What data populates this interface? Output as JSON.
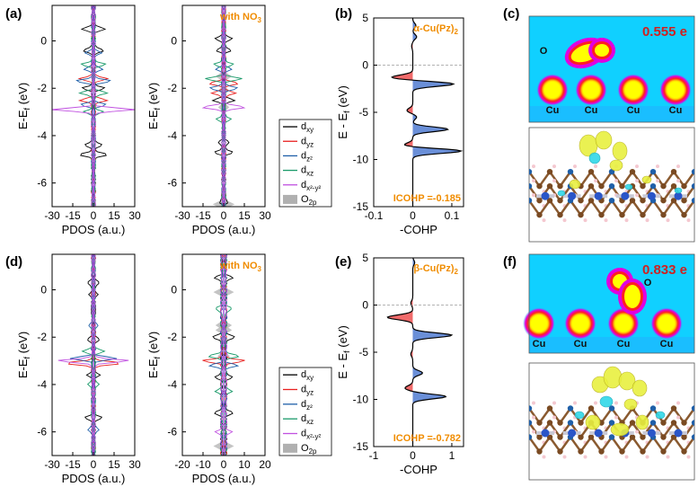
{
  "colors": {
    "dxy": "#000000",
    "dyz": "#e8201f",
    "dz2": "#1f5fa8",
    "dxz": "#1a9a6a",
    "dx2y2": "#c050e0",
    "o2p": "#b0b0b0",
    "zero": "#9b4fd6",
    "pos": "#6a8fd8",
    "neg": "#f06a6a",
    "note": "#f08c00",
    "charge": "#d02020",
    "map_bg": "#10d0ff"
  },
  "panels": {
    "a": "(a)",
    "b": "(b)",
    "c": "(c)",
    "d": "(d)",
    "e": "(e)",
    "f": "(f)"
  },
  "labels": {
    "ef_axis": "E-E",
    "ef_sub": "f",
    "ef_unit": " (eV)",
    "ef_axis_sp": "E - E",
    "pdos": "PDOS (a.u.)",
    "cohp": "-COHP",
    "with_no3": "with NO",
    "alpha": "α-Cu(Pz)",
    "beta": "β-Cu(Pz)",
    "sub2": "2",
    "icohp_a": "ICOHP =-0.185",
    "icohp_b": "ICOHP =-0.782",
    "charge_c": "0.555 e",
    "charge_f": "0.833 e",
    "O": "O",
    "Cu": "Cu"
  },
  "legend": [
    {
      "key": "dxy",
      "main": "d",
      "sub": "xy",
      "kind": "line"
    },
    {
      "key": "dyz",
      "main": "d",
      "sub": "yz",
      "kind": "line"
    },
    {
      "key": "dz2",
      "main": "d",
      "sub": "z²",
      "kind": "line"
    },
    {
      "key": "dxz",
      "main": "d",
      "sub": "xz",
      "kind": "line"
    },
    {
      "key": "dx2y2",
      "main": "d",
      "sub": "x²-y²",
      "kind": "line"
    },
    {
      "key": "o2p",
      "main": "O",
      "sub": "2p",
      "kind": "box"
    }
  ],
  "chart_data": [
    {
      "id": "a-left",
      "type": "line",
      "xlabel": "PDOS (a.u.)",
      "ylabel": "E-Ef (eV)",
      "xlim": [
        -30,
        30
      ],
      "ylim": [
        -7,
        1.5
      ],
      "xticks": [
        -30,
        -15,
        0,
        15,
        30
      ],
      "yticks": [
        0,
        -2,
        -4,
        -6
      ],
      "peaks": [
        [
          0.5,
          "dxy",
          8
        ],
        [
          -0.4,
          "dxy",
          7
        ],
        [
          -0.5,
          "dz2",
          5
        ],
        [
          -1.0,
          "dxz",
          8
        ],
        [
          -1.2,
          "dz2",
          6
        ],
        [
          -1.6,
          "dyz",
          10
        ],
        [
          -1.7,
          "dz2",
          12
        ],
        [
          -2.0,
          "dxy",
          7
        ],
        [
          -2.2,
          "dxz",
          9
        ],
        [
          -2.5,
          "dyz",
          9
        ],
        [
          -2.7,
          "dz2",
          8
        ],
        [
          -2.9,
          "dx2y2",
          30
        ],
        [
          -3.0,
          "dxz",
          6
        ],
        [
          -4.4,
          "dxy",
          5
        ],
        [
          -4.8,
          "dxy",
          10
        ]
      ]
    },
    {
      "id": "a-right",
      "type": "line",
      "xlabel": "PDOS (a.u.)",
      "ylabel": "E-Ef (eV)",
      "xlim": [
        -30,
        30
      ],
      "ylim": [
        -7,
        1.5
      ],
      "xticks": [
        -30,
        -15,
        0,
        15,
        30
      ],
      "yticks": [
        0,
        -2,
        -4,
        -6
      ],
      "note": "with NO3",
      "peaks": [
        [
          0.1,
          "dxy",
          5
        ],
        [
          -0.4,
          "dxy",
          4
        ],
        [
          -1.0,
          "dxz",
          6
        ],
        [
          -1.2,
          "dz2",
          5
        ],
        [
          -1.6,
          "dxz",
          12
        ],
        [
          -1.8,
          "dyz",
          10
        ],
        [
          -2.0,
          "dz2",
          9
        ],
        [
          -2.2,
          "dyz",
          8
        ],
        [
          -2.5,
          "dxy",
          7
        ],
        [
          -2.8,
          "dx2y2",
          15
        ],
        [
          -3.3,
          "dxz",
          4
        ],
        [
          -4.3,
          "dxy",
          3
        ],
        [
          -4.7,
          "dxy",
          6
        ],
        [
          -6.8,
          "dxy",
          2
        ]
      ],
      "o2p": [
        [
          0.1,
          2
        ],
        [
          -1.5,
          6
        ],
        [
          -2.1,
          4
        ],
        [
          -2.8,
          4
        ],
        [
          -4.5,
          1.5
        ],
        [
          -5.7,
          1
        ],
        [
          -6.3,
          1.5
        ],
        [
          -6.9,
          8
        ]
      ]
    },
    {
      "id": "b",
      "type": "area",
      "xlabel": "-COHP",
      "ylabel": "E - Ef (eV)",
      "xlim": [
        -0.1,
        0.13
      ],
      "ylim": [
        -15,
        5
      ],
      "xticks": [
        -0.1,
        0,
        0.1
      ],
      "yticks": [
        5,
        0,
        -5,
        -10,
        -15
      ],
      "title": "α-Cu(Pz)2",
      "icohp": -0.185,
      "peaks": [
        [
          4.2,
          0.008
        ],
        [
          3.0,
          0.01
        ],
        [
          2.0,
          -0.003
        ],
        [
          -1.3,
          -0.055
        ],
        [
          -2.0,
          0.105
        ],
        [
          -4.8,
          -0.015
        ],
        [
          -5.5,
          0.01
        ],
        [
          -6.8,
          0.09
        ],
        [
          -8.5,
          -0.025
        ],
        [
          -9.1,
          0.125
        ]
      ]
    },
    {
      "id": "d-left",
      "type": "line",
      "xlabel": "PDOS (a.u.)",
      "ylabel": "E-Ef (eV)",
      "xlim": [
        -30,
        30
      ],
      "ylim": [
        -7,
        1.5
      ],
      "xticks": [
        -30,
        -15,
        0,
        15,
        30
      ],
      "yticks": [
        0,
        -2,
        -4,
        -6
      ],
      "peaks": [
        [
          0.3,
          "dxy",
          4
        ],
        [
          -0.2,
          "dxy",
          3
        ],
        [
          -1.5,
          "dz2",
          3
        ],
        [
          -2.1,
          "dxy",
          4
        ],
        [
          -2.6,
          "dxz",
          7
        ],
        [
          -2.9,
          "dz2",
          16
        ],
        [
          -3.0,
          "dx2y2",
          25
        ],
        [
          -3.1,
          "dyz",
          20
        ],
        [
          -3.6,
          "dxy",
          4
        ],
        [
          -4.0,
          "dxz",
          3
        ],
        [
          -5.4,
          "dxy",
          5
        ],
        [
          -5.9,
          "dz2",
          3
        ]
      ]
    },
    {
      "id": "d-right",
      "type": "line",
      "xlabel": "PDOS (a.u.)",
      "ylabel": "E-Ef (eV)",
      "xlim": [
        -20,
        20
      ],
      "ylim": [
        -7,
        1.5
      ],
      "xticks": [
        -20,
        -10,
        0,
        10,
        20
      ],
      "yticks": [
        0,
        -2,
        -4,
        -6
      ],
      "note": "with NO3",
      "peaks": [
        [
          0.5,
          "dxy",
          4
        ],
        [
          -0.8,
          "dxz",
          3
        ],
        [
          -2.0,
          "dxy",
          5
        ],
        [
          -2.8,
          "dxz",
          7
        ],
        [
          -3.0,
          "dyz",
          9
        ],
        [
          -3.2,
          "dz2",
          6
        ],
        [
          -3.7,
          "dxy",
          4
        ],
        [
          -4.3,
          "dxz",
          3
        ],
        [
          -5.2,
          "dxy",
          4
        ],
        [
          -6.0,
          "dx2y2",
          3
        ]
      ],
      "o2p": [
        [
          -0.1,
          5
        ],
        [
          -1.5,
          4
        ],
        [
          -1.7,
          4
        ],
        [
          -2.1,
          2
        ],
        [
          -2.8,
          3
        ],
        [
          -6.6,
          5
        ]
      ]
    },
    {
      "id": "e",
      "type": "area",
      "xlabel": "-COHP",
      "ylabel": "E - Ef (eV)",
      "xlim": [
        -1,
        1.3
      ],
      "ylim": [
        -15,
        5
      ],
      "xticks": [
        -1,
        0,
        1
      ],
      "yticks": [
        5,
        0,
        -5,
        -10,
        -15
      ],
      "title": "β-Cu(Pz)2",
      "icohp": -0.782,
      "peaks": [
        [
          4.5,
          0.05
        ],
        [
          0.2,
          -0.05
        ],
        [
          -1.3,
          -0.65
        ],
        [
          -3.2,
          1.0
        ],
        [
          -5.2,
          -0.05
        ],
        [
          -7.2,
          0.25
        ],
        [
          -8.8,
          -0.2
        ],
        [
          -9.7,
          0.85
        ]
      ]
    }
  ]
}
